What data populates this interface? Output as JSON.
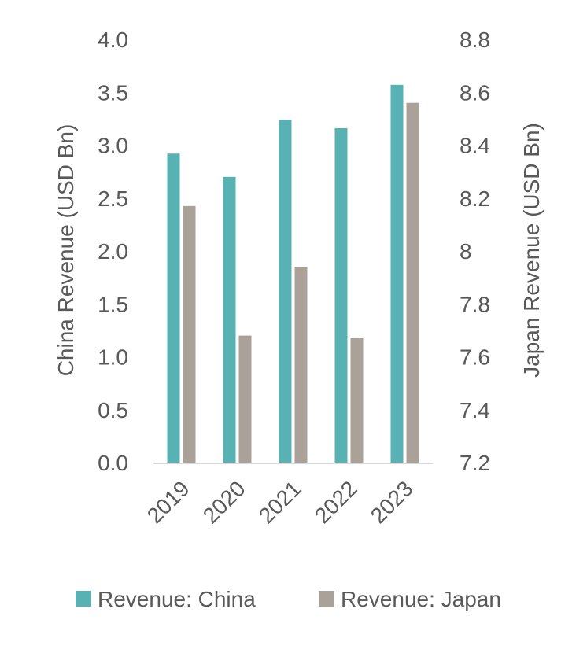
{
  "chart_data": {
    "type": "bar",
    "categories": [
      "2019",
      "2020",
      "2021",
      "2022",
      "2023"
    ],
    "series": [
      {
        "name": "Revenue: China",
        "axis": "left",
        "color": "#58b1b3",
        "values": [
          2.92,
          2.7,
          3.24,
          3.16,
          3.57
        ]
      },
      {
        "name": "Revenue: Japan",
        "axis": "right",
        "color": "#aaa198",
        "values": [
          8.17,
          7.68,
          7.94,
          7.67,
          8.56
        ]
      }
    ],
    "ylabel": "China Revenue (USD Bn)",
    "y2label": "Japan Revenue (USD Bn)",
    "ylim": [
      0,
      4.0
    ],
    "y2lim": [
      7.2,
      8.8
    ],
    "yticks": [
      "0.0",
      "0.5",
      "1.0",
      "1.5",
      "2.0",
      "2.5",
      "3.0",
      "3.5",
      "4.0"
    ],
    "y2ticks": [
      "7.2",
      "7.4",
      "7.6",
      "7.8",
      "8",
      "8.2",
      "8.4",
      "8.6",
      "8.8"
    ],
    "grid": false,
    "legend_position": "bottom",
    "axis_line_color": "#d9d9d9",
    "text_color": "#595959"
  }
}
